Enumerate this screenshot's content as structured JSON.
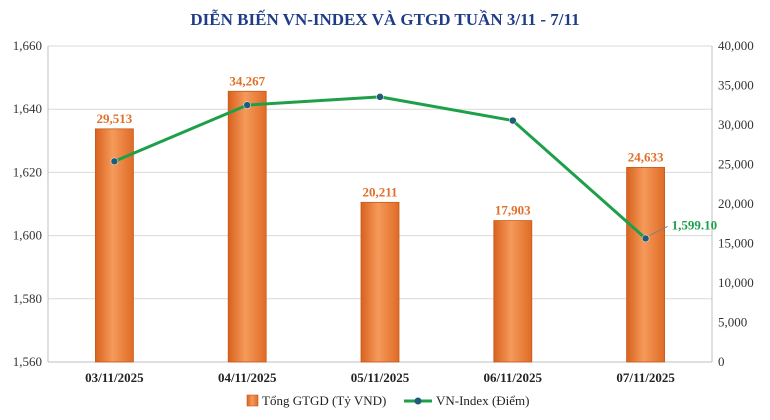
{
  "chart_data": {
    "type": "bar+line",
    "title": "DIỄN BIẾN VN-INDEX VÀ GTGD TUẦN 3/11 - 7/11",
    "categories": [
      "03/11/2025",
      "04/11/2025",
      "05/11/2025",
      "06/11/2025",
      "07/11/2025"
    ],
    "series": [
      {
        "name": "Tổng GTGD (Tỷ VND)",
        "type": "bar",
        "axis": "right",
        "values": [
          29513,
          34267,
          20211,
          17903,
          24633
        ],
        "labels": [
          "29,513",
          "34,267",
          "20,211",
          "17,903",
          "24,633"
        ],
        "color": "#F07F3C"
      },
      {
        "name": "VN-Index (Điểm)",
        "type": "line",
        "axis": "left",
        "values": [
          1623.5,
          1641.3,
          1643.9,
          1636.4,
          1599.1
        ],
        "labels": [
          "",
          "",
          "",
          "",
          "1,599.10"
        ],
        "color": "#1EA04A",
        "marker_color": "#1F5C7A"
      }
    ],
    "y_left": {
      "min": 1560,
      "max": 1660,
      "ticks": [
        1560,
        1580,
        1600,
        1620,
        1640,
        1660
      ],
      "tick_labels": [
        "1,560",
        "1,580",
        "1,600",
        "1,620",
        "1,640",
        "1,660"
      ]
    },
    "y_right": {
      "min": 0,
      "max": 40000,
      "ticks": [
        0,
        5000,
        10000,
        15000,
        20000,
        25000,
        30000,
        35000,
        40000
      ],
      "tick_labels": [
        "0",
        "5,000",
        "10,000",
        "15,000",
        "20,000",
        "25,000",
        "30,000",
        "35,000",
        "40,000"
      ]
    },
    "grid": true,
    "legend": "bottom",
    "title_color": "#1F3C88",
    "bar_label_color": "#E0702A",
    "line_label_color": "#1EA04A"
  }
}
